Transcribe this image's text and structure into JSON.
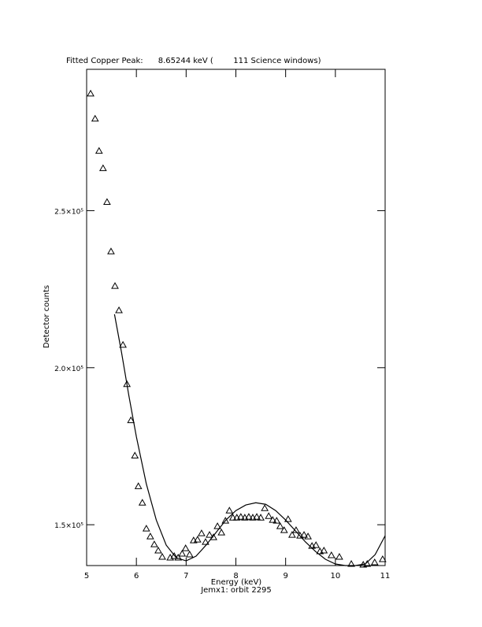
{
  "chart_data": {
    "type": "scatter",
    "title": "Fitted Copper Peak:      8.65244 keV (        111 Science windows)",
    "x_label": "Energy (keV)",
    "subtitle": "Jemx1: orbit 2295",
    "y_label": "Detector counts",
    "xlim": [
      5,
      11
    ],
    "xticks": [
      5,
      6,
      7,
      8,
      9,
      10,
      11
    ],
    "ylim": [
      137000,
      295000
    ],
    "yticks": [
      {
        "value": 150000,
        "label": "1.5×10⁵"
      },
      {
        "value": 200000,
        "label": "2.0×10⁵"
      },
      {
        "value": 250000,
        "label": "2.5×10⁵"
      }
    ],
    "series": [
      {
        "type": "scatter",
        "color": "#000000",
        "x": [
          5.08,
          5.17,
          5.25,
          5.33,
          5.41,
          5.49,
          5.57,
          5.65,
          5.73,
          5.81,
          5.89,
          5.97,
          6.04,
          6.12,
          6.2,
          6.28,
          6.36,
          6.44,
          6.52,
          6.68,
          6.76,
          6.84,
          6.92,
          6.99,
          7.07,
          7.15,
          7.23,
          7.31,
          7.39,
          7.47,
          7.55,
          7.63,
          7.71,
          7.79,
          7.87,
          7.94,
          8.02,
          8.1,
          8.18,
          8.26,
          8.34,
          8.42,
          8.5,
          8.58,
          8.66,
          8.74,
          8.82,
          8.89,
          8.97,
          9.05,
          9.13,
          9.21,
          9.29,
          9.37,
          9.45,
          9.53,
          9.61,
          9.69,
          9.77,
          9.92,
          10.08,
          10.32,
          10.56,
          10.64,
          10.79,
          10.95
        ],
        "values": [
          287250,
          279250,
          269000,
          263500,
          252750,
          237000,
          226000,
          218250,
          207250,
          194750,
          183250,
          172000,
          162250,
          157000,
          148750,
          146250,
          143750,
          141750,
          139750,
          139500,
          140000,
          139500,
          140750,
          142500,
          140500,
          145000,
          145250,
          147250,
          144500,
          146750,
          146000,
          149500,
          147500,
          151250,
          154500,
          152250,
          152250,
          152500,
          152250,
          152500,
          152250,
          152500,
          152250,
          155250,
          152750,
          151500,
          151250,
          149500,
          148250,
          151750,
          146750,
          148250,
          146500,
          146750,
          146250,
          143250,
          143500,
          141500,
          141750,
          140250,
          139750,
          137500,
          137250,
          137500,
          138000,
          139000
        ]
      },
      {
        "type": "line",
        "color": "#000000",
        "x": [
          5.56,
          5.7,
          5.85,
          6.0,
          6.2,
          6.4,
          6.6,
          6.8,
          7.0,
          7.2,
          7.4,
          7.6,
          7.8,
          8.0,
          8.2,
          8.4,
          8.6,
          8.8,
          9.0,
          9.2,
          9.4,
          9.6,
          9.8,
          10.0,
          10.2,
          10.4,
          10.6,
          10.8,
          11.0
        ],
        "values": [
          217000,
          205000,
          191000,
          178000,
          163000,
          151500,
          143500,
          139500,
          138500,
          140000,
          143500,
          147500,
          151500,
          154500,
          156300,
          157000,
          156500,
          154500,
          151500,
          148000,
          144500,
          141500,
          139000,
          137500,
          137000,
          137000,
          137500,
          140500,
          146500
        ]
      }
    ]
  }
}
